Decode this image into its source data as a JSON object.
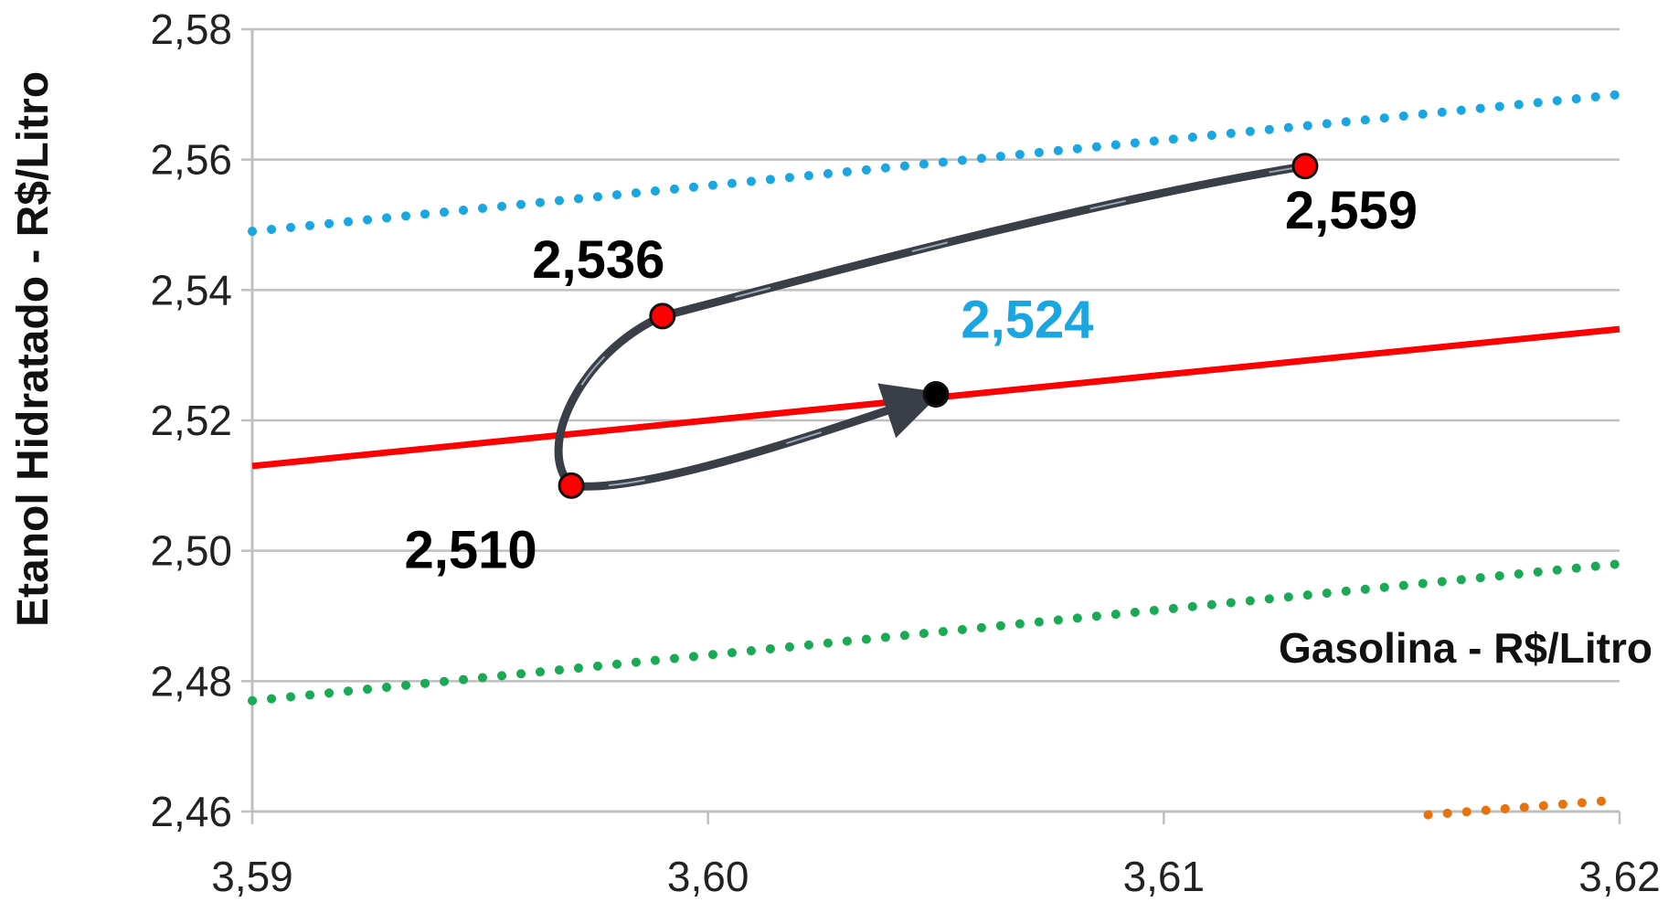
{
  "chart_data": {
    "type": "scatter",
    "title": "",
    "xlabel": "Gasolina - R$/Litro",
    "ylabel": "Etanol Hidratado - R$/Litro",
    "xlim": [
      3.59,
      3.62
    ],
    "ylim": [
      2.46,
      2.58
    ],
    "xticks": [
      3.59,
      3.6,
      3.61,
      3.62
    ],
    "yticks": [
      2.46,
      2.48,
      2.5,
      2.52,
      2.54,
      2.56,
      2.58
    ],
    "xtick_labels": [
      "3,59",
      "3,60",
      "3,61",
      "3,62"
    ],
    "ytick_labels": [
      "2,46",
      "2,48",
      "2,50",
      "2,52",
      "2,54",
      "2,56",
      "2,58"
    ],
    "grid": "horizontal",
    "series": [
      {
        "style": "solid",
        "color": "#ff0000",
        "x": [
          3.59,
          3.62
        ],
        "y": [
          2.513,
          2.534
        ]
      },
      {
        "style": "dotted",
        "color": "#1aa6e0",
        "x": [
          3.59,
          3.62
        ],
        "y": [
          2.549,
          2.57
        ]
      },
      {
        "style": "dotted",
        "color": "#1aaa55",
        "x": [
          3.59,
          3.62
        ],
        "y": [
          2.477,
          2.498
        ]
      },
      {
        "style": "dotted",
        "color": "#e8730c",
        "x": [
          3.6158,
          3.62
        ],
        "y": [
          2.4595,
          2.4618
        ]
      }
    ],
    "points": [
      {
        "x": 3.6131,
        "y": 2.559,
        "label": "2,559",
        "marker_color": "#ff0000",
        "label_color": "#000000"
      },
      {
        "x": 3.599,
        "y": 2.536,
        "label": "2,536",
        "marker_color": "#ff0000",
        "label_color": "#000000"
      },
      {
        "x": 3.597,
        "y": 2.51,
        "label": "2,510",
        "marker_color": "#ff0000",
        "label_color": "#000000"
      },
      {
        "x": 3.605,
        "y": 2.524,
        "label": "2,524",
        "marker_color": "#000000",
        "label_color": "#1aa6e0"
      }
    ],
    "path_order": [
      "2,559",
      "2,536",
      "2,510",
      "2,524"
    ],
    "path_color": "#3a3f47"
  }
}
